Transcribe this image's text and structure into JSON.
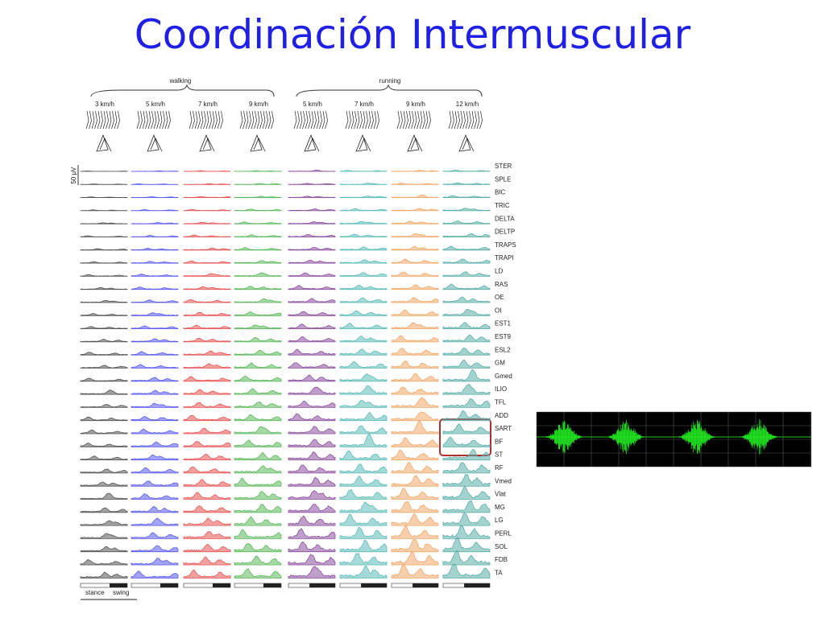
{
  "title": "Coordinación Intermuscular",
  "figure": {
    "groups": [
      "walking",
      "running"
    ],
    "speeds": [
      "3 km/h",
      "5 km/h",
      "7 km/h",
      "9 km/h",
      "5 km/h",
      "7 km/h",
      "9 km/h",
      "12 km/h"
    ],
    "muscles": [
      "STER",
      "SPLE",
      "BIC",
      "TRIC",
      "DELTA",
      "DELTP",
      "TRAPS",
      "TRAPI",
      "LD",
      "RAS",
      "OE",
      "OI",
      "EST1",
      "EST9",
      "ESL2",
      "GM",
      "Gmed",
      "ILIO",
      "TFL",
      "ADD",
      "SART",
      "BF",
      "ST",
      "RF",
      "Vmed",
      "Vlat",
      "MG",
      "LG",
      "PERL",
      "SOL",
      "FDB",
      "TA"
    ],
    "scale_label": "50 μV",
    "phases": [
      "stance",
      "swing"
    ]
  }
}
